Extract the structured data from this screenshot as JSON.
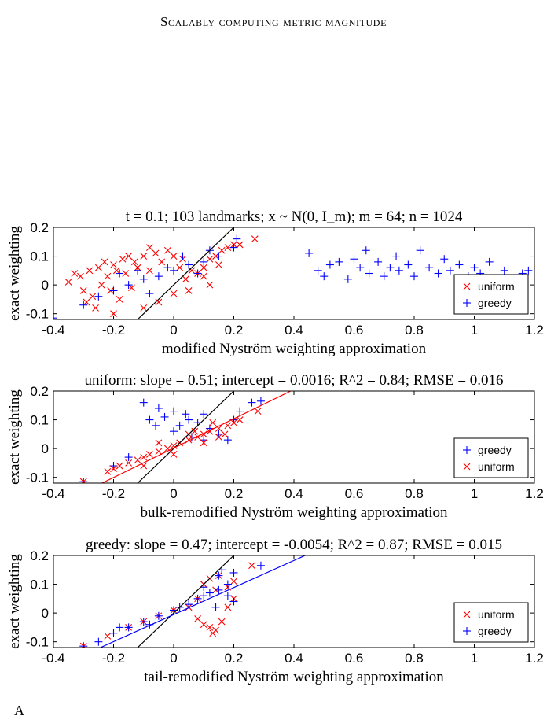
{
  "page": {
    "header": "Scalably computing metric magnitude",
    "footer_fragment": "A"
  },
  "colors": {
    "uniform": "#ff0000",
    "greedy": "#0000ff",
    "reference": "#000000"
  },
  "chart_data": [
    {
      "type": "scatter",
      "title": "t = 0.1; 103 landmarks; x ~ N(0, I_m); m = 64; n = 1024",
      "xlabel": "modified Nyström weighting approximation",
      "ylabel": "exact weighting",
      "xlim": [
        -0.4,
        1.2
      ],
      "ylim": [
        -0.12,
        0.2
      ],
      "xticks": [
        -0.4,
        -0.2,
        0,
        0.2,
        0.4,
        0.6,
        0.8,
        1,
        1.2
      ],
      "yticks": [
        0.2,
        0.1,
        0,
        -0.1
      ],
      "xtick_labels": [
        "-0.4",
        "-0.2",
        "0",
        "0.2",
        "0.4",
        "0.6",
        "0.8",
        "1",
        "1.2"
      ],
      "ytick_labels": [
        "0.2",
        "0.1",
        "0",
        "-0.1"
      ],
      "legend": {
        "location": "right",
        "entries": [
          {
            "name": "uniform",
            "marker": "x",
            "color": "#ff0000"
          },
          {
            "name": "greedy",
            "marker": "+",
            "color": "#0000ff"
          }
        ]
      },
      "reference_line": {
        "slope": 1,
        "intercept": 0
      },
      "series": [
        {
          "name": "uniform",
          "marker": "x",
          "description": "dense cloud",
          "points": [
            [
              -0.33,
              0.04
            ],
            [
              -0.31,
              0.03
            ],
            [
              -0.35,
              0.01
            ],
            [
              -0.3,
              -0.02
            ],
            [
              -0.28,
              0.05
            ],
            [
              -0.27,
              -0.04
            ],
            [
              -0.25,
              0.06
            ],
            [
              -0.24,
              0.0
            ],
            [
              -0.29,
              -0.06
            ],
            [
              -0.26,
              -0.08
            ],
            [
              -0.23,
              0.08
            ],
            [
              -0.22,
              0.03
            ],
            [
              -0.21,
              -0.02
            ],
            [
              -0.2,
              0.07
            ],
            [
              -0.19,
              0.05
            ],
            [
              -0.18,
              -0.05
            ],
            [
              -0.17,
              0.09
            ],
            [
              -0.16,
              0.04
            ],
            [
              -0.15,
              0.1
            ],
            [
              -0.14,
              -0.01
            ],
            [
              -0.13,
              0.08
            ],
            [
              -0.12,
              0.06
            ],
            [
              -0.1,
              0.1
            ],
            [
              -0.08,
              0.05
            ],
            [
              -0.06,
              0.11
            ],
            [
              -0.04,
              0.08
            ],
            [
              -0.02,
              0.12
            ],
            [
              0.0,
              0.1
            ],
            [
              0.02,
              0.06
            ],
            [
              0.04,
              0.02
            ],
            [
              0.06,
              0.05
            ],
            [
              0.08,
              0.04
            ],
            [
              0.1,
              0.06
            ],
            [
              0.12,
              0.09
            ],
            [
              0.14,
              0.1
            ],
            [
              0.16,
              0.12
            ],
            [
              0.18,
              0.13
            ],
            [
              0.2,
              0.14
            ],
            [
              0.22,
              0.14
            ],
            [
              0.05,
              -0.02
            ],
            [
              0.0,
              -0.03
            ],
            [
              -0.05,
              -0.06
            ],
            [
              -0.1,
              -0.08
            ],
            [
              0.1,
              0.03
            ],
            [
              0.15,
              0.07
            ],
            [
              0.27,
              0.16
            ],
            [
              -0.2,
              -0.1
            ],
            [
              -0.08,
              0.13
            ],
            [
              0.03,
              0.09
            ],
            [
              0.12,
              0.0
            ]
          ]
        },
        {
          "name": "greedy",
          "marker": "+",
          "description": "cloud plus outliers",
          "points": [
            [
              -0.4,
              -0.115
            ],
            [
              -0.3,
              -0.07
            ],
            [
              -0.25,
              -0.04
            ],
            [
              -0.2,
              -0.02
            ],
            [
              -0.15,
              0.0
            ],
            [
              -0.1,
              0.02
            ],
            [
              -0.05,
              0.03
            ],
            [
              0.0,
              0.05
            ],
            [
              0.05,
              0.07
            ],
            [
              0.1,
              0.08
            ],
            [
              0.15,
              0.1
            ],
            [
              0.2,
              0.13
            ],
            [
              0.21,
              0.16
            ],
            [
              -0.18,
              0.04
            ],
            [
              -0.12,
              0.05
            ],
            [
              -0.08,
              -0.03
            ],
            [
              -0.02,
              0.06
            ],
            [
              0.03,
              0.1
            ],
            [
              0.08,
              0.04
            ],
            [
              0.12,
              0.12
            ],
            [
              0.45,
              0.11
            ],
            [
              0.48,
              0.05
            ],
            [
              0.5,
              0.03
            ],
            [
              0.55,
              0.08
            ],
            [
              0.58,
              0.02
            ],
            [
              0.6,
              0.09
            ],
            [
              0.62,
              0.06
            ],
            [
              0.65,
              0.04
            ],
            [
              0.68,
              0.08
            ],
            [
              0.7,
              0.03
            ],
            [
              0.72,
              0.06
            ],
            [
              0.75,
              0.05
            ],
            [
              0.78,
              0.07
            ],
            [
              0.8,
              0.03
            ],
            [
              0.82,
              0.12
            ],
            [
              0.85,
              0.06
            ],
            [
              0.88,
              0.04
            ],
            [
              0.9,
              0.09
            ],
            [
              0.92,
              0.05
            ],
            [
              0.95,
              0.07
            ],
            [
              0.98,
              0.03
            ],
            [
              1.0,
              0.06
            ],
            [
              1.02,
              0.04
            ],
            [
              1.05,
              0.08
            ],
            [
              1.1,
              0.05
            ],
            [
              1.16,
              0.04
            ],
            [
              1.18,
              0.05
            ],
            [
              0.64,
              0.12
            ],
            [
              0.52,
              0.07
            ],
            [
              0.74,
              0.1
            ]
          ]
        }
      ]
    },
    {
      "type": "scatter",
      "title": "uniform: slope = 0.51; intercept = 0.0016; R^2 = 0.84; RMSE = 0.016",
      "xlabel": "bulk-remodified Nyström weighting approximation",
      "ylabel": "exact weighting",
      "xlim": [
        -0.4,
        1.2
      ],
      "ylim": [
        -0.12,
        0.2
      ],
      "xticks": [
        -0.4,
        -0.2,
        0,
        0.2,
        0.4,
        0.6,
        0.8,
        1,
        1.2
      ],
      "yticks": [
        0.2,
        0.1,
        0,
        -0.1
      ],
      "xtick_labels": [
        "-0.4",
        "-0.2",
        "0",
        "0.2",
        "0.4",
        "0.6",
        "0.8",
        "1",
        "1.2"
      ],
      "ytick_labels": [
        "0.2",
        "0.1",
        "0",
        "-0.1"
      ],
      "legend": {
        "location": "right",
        "entries": [
          {
            "name": "greedy",
            "marker": "+",
            "color": "#0000ff"
          },
          {
            "name": "uniform",
            "marker": "x",
            "color": "#ff0000"
          }
        ]
      },
      "reference_line": {
        "slope": 1,
        "intercept": 0
      },
      "fit_line": {
        "series": "uniform",
        "slope": 0.51,
        "intercept": 0.0016,
        "color": "#ff0000"
      },
      "series": [
        {
          "name": "greedy",
          "marker": "+",
          "points": [
            [
              -0.3,
              -0.115
            ],
            [
              -0.1,
              0.16
            ],
            [
              -0.05,
              0.14
            ],
            [
              0.0,
              0.13
            ],
            [
              -0.08,
              0.1
            ],
            [
              -0.03,
              0.11
            ],
            [
              0.02,
              0.08
            ],
            [
              0.05,
              0.1
            ],
            [
              0.08,
              0.09
            ],
            [
              0.1,
              0.12
            ],
            [
              0.12,
              0.07
            ],
            [
              0.15,
              0.05
            ],
            [
              0.18,
              0.03
            ],
            [
              0.2,
              0.1
            ],
            [
              0.22,
              0.13
            ],
            [
              0.26,
              0.16
            ],
            [
              0.29,
              0.165
            ],
            [
              -0.15,
              -0.03
            ],
            [
              -0.2,
              -0.06
            ],
            [
              0.06,
              0.04
            ],
            [
              0.1,
              0.03
            ],
            [
              -0.06,
              0.08
            ],
            [
              0.0,
              0.06
            ],
            [
              0.04,
              0.12
            ]
          ]
        },
        {
          "name": "uniform",
          "marker": "x",
          "points": [
            [
              -0.3,
              -0.115
            ],
            [
              -0.22,
              -0.08
            ],
            [
              -0.2,
              -0.07
            ],
            [
              -0.18,
              -0.06
            ],
            [
              -0.15,
              -0.05
            ],
            [
              -0.12,
              -0.04
            ],
            [
              -0.1,
              -0.03
            ],
            [
              -0.08,
              -0.02
            ],
            [
              -0.05,
              -0.01
            ],
            [
              -0.02,
              0.0
            ],
            [
              0.0,
              0.01
            ],
            [
              0.02,
              0.02
            ],
            [
              0.05,
              0.03
            ],
            [
              0.08,
              0.04
            ],
            [
              0.1,
              0.05
            ],
            [
              0.12,
              0.06
            ],
            [
              0.15,
              0.07
            ],
            [
              0.18,
              0.08
            ],
            [
              0.2,
              0.09
            ],
            [
              0.22,
              0.1
            ],
            [
              0.28,
              0.13
            ],
            [
              0.1,
              0.02
            ],
            [
              0.05,
              0.05
            ],
            [
              -0.05,
              0.02
            ],
            [
              0.15,
              0.04
            ],
            [
              0.0,
              -0.02
            ],
            [
              -0.1,
              -0.06
            ],
            [
              0.07,
              0.06
            ],
            [
              0.13,
              0.09
            ],
            [
              0.17,
              0.05
            ]
          ]
        }
      ]
    },
    {
      "type": "scatter",
      "title": "greedy: slope = 0.47; intercept = -0.0054; R^2 = 0.87; RMSE = 0.015",
      "xlabel": "tail-remodified Nyström weighting approximation",
      "ylabel": "exact weighting",
      "xlim": [
        -0.4,
        1.2
      ],
      "ylim": [
        -0.12,
        0.2
      ],
      "xticks": [
        -0.4,
        -0.2,
        0,
        0.2,
        0.4,
        0.6,
        0.8,
        1,
        1.2
      ],
      "yticks": [
        0.2,
        0.1,
        0,
        -0.1
      ],
      "xtick_labels": [
        "-0.4",
        "-0.2",
        "0",
        "0.2",
        "0.4",
        "0.6",
        "0.8",
        "1",
        "1.2"
      ],
      "ytick_labels": [
        "0.2",
        "0.1",
        "0",
        "-0.1"
      ],
      "legend": {
        "location": "right",
        "entries": [
          {
            "name": "uniform",
            "marker": "x",
            "color": "#ff0000"
          },
          {
            "name": "greedy",
            "marker": "+",
            "color": "#0000ff"
          }
        ]
      },
      "reference_line": {
        "slope": 1,
        "intercept": 0
      },
      "fit_line": {
        "series": "greedy",
        "slope": 0.47,
        "intercept": -0.0054,
        "color": "#0000ff"
      },
      "series": [
        {
          "name": "uniform",
          "marker": "x",
          "points": [
            [
              -0.3,
              -0.115
            ],
            [
              -0.22,
              -0.08
            ],
            [
              -0.15,
              -0.05
            ],
            [
              -0.1,
              -0.03
            ],
            [
              -0.05,
              -0.01
            ],
            [
              0.0,
              0.01
            ],
            [
              0.05,
              0.02
            ],
            [
              0.08,
              -0.02
            ],
            [
              0.1,
              -0.04
            ],
            [
              0.12,
              -0.05
            ],
            [
              0.14,
              -0.06
            ],
            [
              0.16,
              -0.03
            ],
            [
              0.1,
              0.1
            ],
            [
              0.12,
              0.12
            ],
            [
              0.14,
              0.08
            ],
            [
              0.15,
              0.13
            ],
            [
              0.18,
              0.09
            ],
            [
              0.2,
              0.11
            ],
            [
              0.26,
              0.165
            ],
            [
              0.18,
              0.02
            ],
            [
              0.13,
              -0.07
            ],
            [
              0.08,
              0.05
            ],
            [
              0.2,
              0.05
            ]
          ]
        },
        {
          "name": "greedy",
          "marker": "+",
          "points": [
            [
              -0.3,
              -0.115
            ],
            [
              -0.25,
              -0.1
            ],
            [
              -0.2,
              -0.07
            ],
            [
              -0.15,
              -0.05
            ],
            [
              -0.1,
              -0.03
            ],
            [
              -0.05,
              -0.01
            ],
            [
              0.0,
              0.01
            ],
            [
              0.05,
              0.03
            ],
            [
              0.08,
              0.05
            ],
            [
              0.1,
              0.06
            ],
            [
              0.12,
              0.07
            ],
            [
              0.15,
              0.08
            ],
            [
              0.18,
              0.06
            ],
            [
              0.2,
              0.04
            ],
            [
              0.15,
              0.13
            ],
            [
              0.16,
              0.15
            ],
            [
              0.2,
              0.14
            ],
            [
              0.29,
              0.165
            ],
            [
              -0.08,
              -0.04
            ],
            [
              0.02,
              0.02
            ],
            [
              0.1,
              0.09
            ],
            [
              0.14,
              0.02
            ],
            [
              0.18,
              0.1
            ],
            [
              -0.18,
              -0.05
            ]
          ]
        }
      ]
    }
  ]
}
